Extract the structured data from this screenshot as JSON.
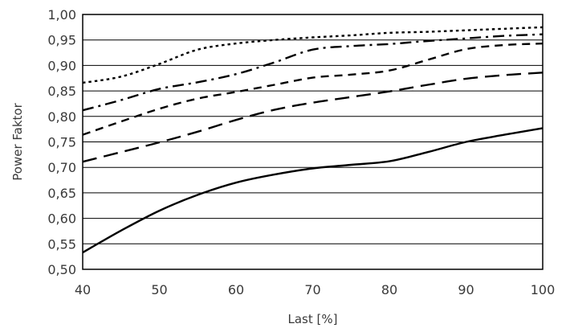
{
  "chart_data": {
    "type": "line",
    "title": "",
    "xlabel": "Last [%]",
    "ylabel": "Power Faktor",
    "xlim": [
      40,
      100
    ],
    "ylim": [
      0.5,
      1.0
    ],
    "grid": "horizontal",
    "x_ticks": [
      "40",
      "50",
      "60",
      "70",
      "80",
      "90",
      "100"
    ],
    "y_ticks": [
      "0,50",
      "0,55",
      "0,60",
      "0,65",
      "0,70",
      "0,75",
      "0,80",
      "0,85",
      "0,90",
      "0,95",
      "1,00"
    ],
    "series": [
      {
        "line_style": "solid",
        "color": "#000000",
        "x": [
          40,
          45,
          50,
          55,
          60,
          65,
          70,
          75,
          80,
          85,
          90,
          95,
          100
        ],
        "y": [
          0.533,
          0.576,
          0.615,
          0.646,
          0.67,
          0.686,
          0.698,
          0.705,
          0.712,
          0.73,
          0.75,
          0.764,
          0.777
        ]
      },
      {
        "line_style": "long-dash",
        "color": "#000000",
        "x": [
          40,
          45,
          50,
          55,
          60,
          65,
          70,
          75,
          80,
          85,
          90,
          95,
          100
        ],
        "y": [
          0.711,
          0.73,
          0.749,
          0.77,
          0.793,
          0.813,
          0.827,
          0.838,
          0.849,
          0.862,
          0.874,
          0.881,
          0.886
        ]
      },
      {
        "line_style": "dash",
        "color": "#000000",
        "x": [
          40,
          45,
          50,
          55,
          60,
          65,
          70,
          75,
          80,
          85,
          90,
          95,
          100
        ],
        "y": [
          0.764,
          0.79,
          0.815,
          0.835,
          0.848,
          0.862,
          0.876,
          0.882,
          0.89,
          0.911,
          0.932,
          0.94,
          0.943
        ]
      },
      {
        "line_style": "dash-dot",
        "color": "#000000",
        "x": [
          40,
          45,
          50,
          55,
          60,
          65,
          70,
          75,
          80,
          85,
          90,
          95,
          100
        ],
        "y": [
          0.812,
          0.832,
          0.854,
          0.867,
          0.883,
          0.906,
          0.931,
          0.938,
          0.942,
          0.948,
          0.953,
          0.958,
          0.961
        ]
      },
      {
        "line_style": "dotted",
        "color": "#000000",
        "x": [
          40,
          45,
          50,
          55,
          60,
          65,
          70,
          75,
          80,
          85,
          90,
          95,
          100
        ],
        "y": [
          0.866,
          0.878,
          0.903,
          0.931,
          0.943,
          0.95,
          0.955,
          0.959,
          0.964,
          0.966,
          0.969,
          0.972,
          0.975
        ]
      }
    ]
  }
}
